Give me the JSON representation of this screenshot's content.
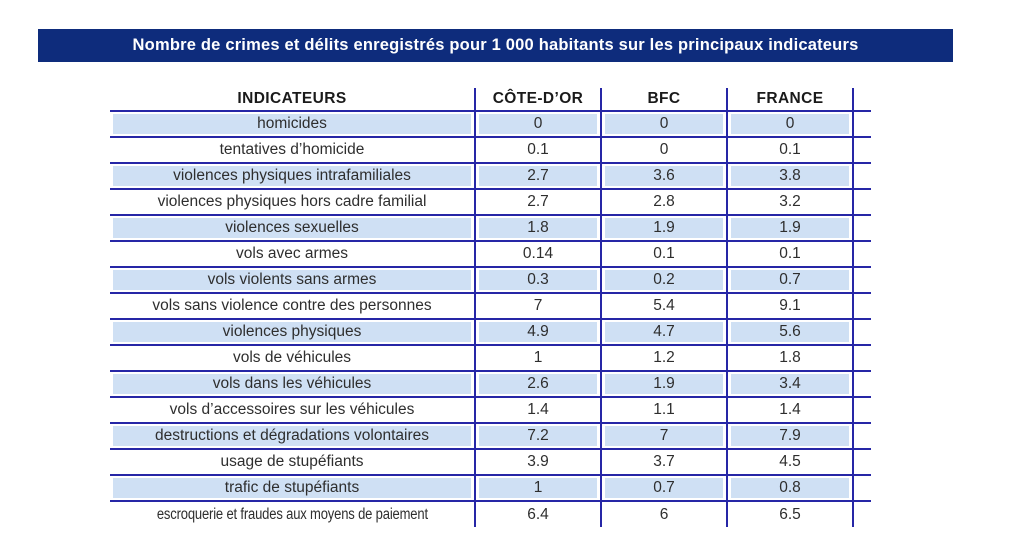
{
  "title": "Nombre de crimes et délits enregistrés pour 1 000 habitants sur les principaux indicateurs",
  "colors": {
    "banner_bg": "#0e2c7c",
    "banner_text": "#ffffff",
    "grid_line": "#2626a6",
    "alt_row_bg": "#cfe0f4",
    "text": "#2e2e2e"
  },
  "chart_data": {
    "type": "table",
    "title": "Nombre de crimes et délits enregistrés pour 1 000 habitants sur les principaux indicateurs",
    "columns": [
      "INDICATEURS",
      "CÔTE-D’OR",
      "BFC",
      "FRANCE"
    ],
    "rows": [
      {
        "label": "homicides",
        "values": [
          "0",
          "0",
          "0"
        ]
      },
      {
        "label": "tentatives d’homicide",
        "values": [
          "0.1",
          "0",
          "0.1"
        ]
      },
      {
        "label": "violences physiques intrafamiliales",
        "values": [
          "2.7",
          "3.6",
          "3.8"
        ]
      },
      {
        "label": "violences physiques hors cadre familial",
        "values": [
          "2.7",
          "2.8",
          "3.2"
        ]
      },
      {
        "label": "violences sexuelles",
        "values": [
          "1.8",
          "1.9",
          "1.9"
        ]
      },
      {
        "label": "vols avec armes",
        "values": [
          "0.14",
          "0.1",
          "0.1"
        ]
      },
      {
        "label": "vols violents sans armes",
        "values": [
          "0.3",
          "0.2",
          "0.7"
        ]
      },
      {
        "label": "vols sans violence contre des personnes",
        "values": [
          "7",
          "5.4",
          "9.1"
        ]
      },
      {
        "label": "violences physiques",
        "values": [
          "4.9",
          "4.7",
          "5.6"
        ]
      },
      {
        "label": "vols de véhicules",
        "values": [
          "1",
          "1.2",
          "1.8"
        ]
      },
      {
        "label": "vols dans les véhicules",
        "values": [
          "2.6",
          "1.9",
          "3.4"
        ]
      },
      {
        "label": "vols d’accessoires sur les véhicules",
        "values": [
          "1.4",
          "1.1",
          "1.4"
        ]
      },
      {
        "label": "destructions et dégradations volontaires",
        "values": [
          "7.2",
          "7",
          "7.9"
        ]
      },
      {
        "label": "usage de stupéfiants",
        "values": [
          "3.9",
          "3.7",
          "4.5"
        ]
      },
      {
        "label": "trafic de stupéfiants",
        "values": [
          "1",
          "0.7",
          "0.8"
        ]
      },
      {
        "label": "escroquerie et fraudes aux moyens de paiement",
        "values": [
          "6.4",
          "6",
          "6.5"
        ]
      }
    ]
  }
}
